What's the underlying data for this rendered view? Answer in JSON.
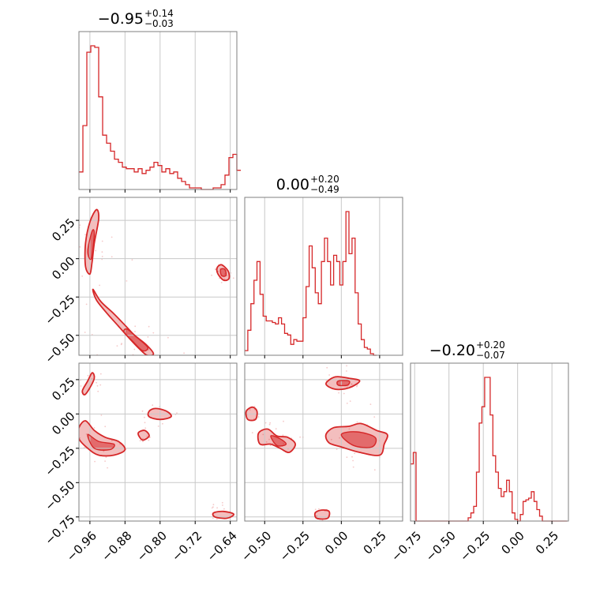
{
  "chart_data": {
    "type": "corner",
    "color": "#d62728",
    "parameters": [
      {
        "title_value": "−0.95",
        "title_plus": "+0.14",
        "title_minus": "−0.03",
        "range": [
          -0.985,
          -0.625
        ],
        "ticks": [
          -0.96,
          -0.88,
          -0.8,
          -0.72,
          -0.64
        ],
        "tick_labels": [
          "−0.96",
          "−0.88",
          "−0.80",
          "−0.72",
          "−0.64"
        ],
        "histogram": {
          "edges_start": -0.985,
          "bin_width": 0.009,
          "counts": [
            0.11,
            0.4,
            0.86,
            0.9,
            0.89,
            0.58,
            0.34,
            0.29,
            0.24,
            0.19,
            0.17,
            0.14,
            0.13,
            0.13,
            0.11,
            0.13,
            0.1,
            0.12,
            0.14,
            0.17,
            0.15,
            0.11,
            0.13,
            0.1,
            0.11,
            0.07,
            0.05,
            0.03,
            0.01,
            0.01,
            0.01,
            0.0,
            0.0,
            0.0,
            0.01,
            0.01,
            0.03,
            0.09,
            0.2,
            0.22,
            0.12
          ]
        }
      },
      {
        "title_value": "0.00",
        "title_plus": "+0.20",
        "title_minus": "−0.49",
        "range": [
          -0.63,
          0.4
        ],
        "ticks": [
          -0.5,
          -0.25,
          0.0,
          0.25
        ],
        "tick_labels": [
          "−0.50",
          "−0.25",
          "0.00",
          "0.25"
        ],
        "histogram": {
          "edges_start": -0.63,
          "bin_width": 0.02,
          "counts": [
            0.03,
            0.16,
            0.33,
            0.48,
            0.6,
            0.39,
            0.25,
            0.22,
            0.22,
            0.21,
            0.2,
            0.24,
            0.2,
            0.14,
            0.13,
            0.07,
            0.1,
            0.09,
            0.09,
            0.24,
            0.44,
            0.7,
            0.56,
            0.4,
            0.33,
            0.6,
            0.75,
            0.6,
            0.45,
            0.64,
            0.6,
            0.45,
            0.6,
            0.92,
            0.65,
            0.75,
            0.4,
            0.2,
            0.1,
            0.05,
            0.04,
            0.01,
            0.0
          ]
        }
      },
      {
        "title_value": "−0.20",
        "title_plus": "+0.20",
        "title_minus": "−0.07",
        "range": [
          -0.78,
          0.37
        ],
        "ticks": [
          -0.75,
          -0.5,
          -0.25,
          0.0,
          0.25
        ],
        "tick_labels": [
          "−0.75",
          "−0.50",
          "−0.25",
          "0.00",
          "0.25"
        ],
        "histogram": {
          "edges_start": -0.78,
          "bin_width": 0.02,
          "counts": [
            0.35,
            0.42,
            0.0,
            0.0,
            0.0,
            0.0,
            0.0,
            0.0,
            0.0,
            0.0,
            0.0,
            0.0,
            0.0,
            0.0,
            0.0,
            0.0,
            0.0,
            0.0,
            0.0,
            0.0,
            0.0,
            0.02,
            0.05,
            0.09,
            0.3,
            0.6,
            0.7,
            0.88,
            0.88,
            0.65,
            0.4,
            0.3,
            0.2,
            0.15,
            0.18,
            0.25,
            0.18,
            0.05,
            0.01,
            0.0,
            0.04,
            0.12,
            0.13,
            0.14,
            0.18,
            0.12,
            0.07,
            0.03,
            0.0,
            0.0,
            0.0,
            0.0,
            0.0,
            0.0,
            0.0,
            0.0,
            0.0
          ]
        }
      }
    ],
    "pairs": [
      {
        "name": "p1-vs-p0",
        "row": 1,
        "col": 0,
        "blobs": [
          {
            "pts": [
              [
                -0.97,
                0.1
              ],
              [
                -0.96,
                0.24
              ],
              [
                -0.945,
                0.32
              ],
              [
                -0.94,
                0.26
              ],
              [
                -0.95,
                0.1
              ],
              [
                -0.955,
                -0.02
              ],
              [
                -0.96,
                -0.1
              ],
              [
                -0.97,
                -0.05
              ]
            ],
            "level": 1
          },
          {
            "pts": [
              [
                -0.965,
                0.05
              ],
              [
                -0.955,
                0.18
              ],
              [
                -0.95,
                0.16
              ],
              [
                -0.957,
                0.0
              ]
            ],
            "level": 2
          },
          {
            "pts": [
              [
                -0.953,
                -0.2
              ],
              [
                -0.935,
                -0.28
              ],
              [
                -0.905,
                -0.36
              ],
              [
                -0.878,
                -0.44
              ],
              [
                -0.858,
                -0.5
              ],
              [
                -0.832,
                -0.56
              ],
              [
                -0.815,
                -0.62
              ],
              [
                -0.83,
                -0.63
              ],
              [
                -0.85,
                -0.58
              ],
              [
                -0.87,
                -0.52
              ],
              [
                -0.895,
                -0.44
              ],
              [
                -0.92,
                -0.36
              ],
              [
                -0.945,
                -0.27
              ]
            ],
            "level": 1
          },
          {
            "pts": [
              [
                -0.875,
                -0.46
              ],
              [
                -0.85,
                -0.52
              ],
              [
                -0.828,
                -0.58
              ],
              [
                -0.84,
                -0.6
              ],
              [
                -0.862,
                -0.54
              ],
              [
                -0.882,
                -0.48
              ]
            ],
            "level": 2
          },
          {
            "pts": [
              [
                -0.67,
                -0.06
              ],
              [
                -0.66,
                -0.04
              ],
              [
                -0.645,
                -0.08
              ],
              [
                -0.643,
                -0.13
              ],
              [
                -0.655,
                -0.14
              ],
              [
                -0.668,
                -0.1
              ]
            ],
            "level": 1
          },
          {
            "pts": [
              [
                -0.662,
                -0.07
              ],
              [
                -0.652,
                -0.07
              ],
              [
                -0.65,
                -0.11
              ],
              [
                -0.66,
                -0.11
              ]
            ],
            "level": 2
          }
        ]
      },
      {
        "name": "p2-vs-p0",
        "row": 2,
        "col": 0,
        "blobs": [
          {
            "pts": [
              [
                -0.977,
                0.17
              ],
              [
                -0.965,
                0.24
              ],
              [
                -0.955,
                0.3
              ],
              [
                -0.95,
                0.26
              ],
              [
                -0.962,
                0.18
              ],
              [
                -0.972,
                0.14
              ]
            ],
            "level": 1
          },
          {
            "pts": [
              [
                -0.985,
                -0.1
              ],
              [
                -0.97,
                -0.05
              ],
              [
                -0.95,
                -0.12
              ],
              [
                -0.925,
                -0.17
              ],
              [
                -0.895,
                -0.2
              ],
              [
                -0.88,
                -0.26
              ],
              [
                -0.905,
                -0.3
              ],
              [
                -0.94,
                -0.3
              ],
              [
                -0.965,
                -0.25
              ],
              [
                -0.985,
                -0.18
              ]
            ],
            "level": 1
          },
          {
            "pts": [
              [
                -0.965,
                -0.15
              ],
              [
                -0.94,
                -0.2
              ],
              [
                -0.905,
                -0.22
              ],
              [
                -0.915,
                -0.26
              ],
              [
                -0.95,
                -0.25
              ]
            ],
            "level": 2
          },
          {
            "pts": [
              [
                -0.85,
                -0.14
              ],
              [
                -0.835,
                -0.12
              ],
              [
                -0.825,
                -0.16
              ],
              [
                -0.84,
                -0.19
              ]
            ],
            "level": 1
          },
          {
            "pts": [
              [
                -0.825,
                0.02
              ],
              [
                -0.81,
                0.04
              ],
              [
                -0.785,
                0.02
              ],
              [
                -0.775,
                -0.02
              ],
              [
                -0.8,
                -0.04
              ],
              [
                -0.825,
                -0.02
              ]
            ],
            "level": 1
          },
          {
            "pts": [
              [
                -0.678,
                -0.72
              ],
              [
                -0.655,
                -0.71
              ],
              [
                -0.632,
                -0.73
              ],
              [
                -0.648,
                -0.76
              ],
              [
                -0.675,
                -0.75
              ]
            ],
            "level": 1
          }
        ]
      },
      {
        "name": "p2-vs-p1",
        "row": 2,
        "col": 1,
        "blobs": [
          {
            "pts": [
              [
                -0.62,
                0.02
              ],
              [
                -0.58,
                0.05
              ],
              [
                -0.55,
                0.02
              ],
              [
                -0.56,
                -0.04
              ],
              [
                -0.61,
                -0.04
              ]
            ],
            "level": 1
          },
          {
            "pts": [
              [
                -0.54,
                -0.14
              ],
              [
                -0.48,
                -0.11
              ],
              [
                -0.42,
                -0.16
              ],
              [
                -0.35,
                -0.17
              ],
              [
                -0.3,
                -0.22
              ],
              [
                -0.34,
                -0.28
              ],
              [
                -0.4,
                -0.25
              ],
              [
                -0.46,
                -0.22
              ],
              [
                -0.53,
                -0.22
              ]
            ],
            "level": 1
          },
          {
            "pts": [
              [
                -0.46,
                -0.16
              ],
              [
                -0.4,
                -0.18
              ],
              [
                -0.36,
                -0.22
              ],
              [
                -0.42,
                -0.23
              ]
            ],
            "level": 2
          },
          {
            "pts": [
              [
                -0.1,
                -0.15
              ],
              [
                -0.05,
                -0.1
              ],
              [
                0.05,
                -0.09
              ],
              [
                0.13,
                -0.07
              ],
              [
                0.23,
                -0.12
              ],
              [
                0.3,
                -0.15
              ],
              [
                0.28,
                -0.22
              ],
              [
                0.25,
                -0.3
              ],
              [
                0.12,
                -0.28
              ],
              [
                0.0,
                -0.24
              ],
              [
                -0.08,
                -0.21
              ]
            ],
            "level": 1
          },
          {
            "pts": [
              [
                0.0,
                -0.15
              ],
              [
                0.1,
                -0.13
              ],
              [
                0.22,
                -0.17
              ],
              [
                0.2,
                -0.24
              ],
              [
                0.08,
                -0.23
              ]
            ],
            "level": 2
          },
          {
            "pts": [
              [
                -0.1,
                0.22
              ],
              [
                -0.04,
                0.27
              ],
              [
                0.05,
                0.26
              ],
              [
                0.12,
                0.24
              ],
              [
                0.05,
                0.19
              ],
              [
                -0.04,
                0.18
              ]
            ],
            "level": 1
          },
          {
            "pts": [
              [
                -0.02,
                0.24
              ],
              [
                0.05,
                0.24
              ],
              [
                0.04,
                0.21
              ],
              [
                -0.02,
                0.21
              ]
            ],
            "level": 2
          },
          {
            "pts": [
              [
                -0.17,
                -0.72
              ],
              [
                -0.13,
                -0.7
              ],
              [
                -0.08,
                -0.71
              ],
              [
                -0.09,
                -0.76
              ],
              [
                -0.16,
                -0.76
              ]
            ],
            "level": 1
          }
        ]
      }
    ]
  }
}
